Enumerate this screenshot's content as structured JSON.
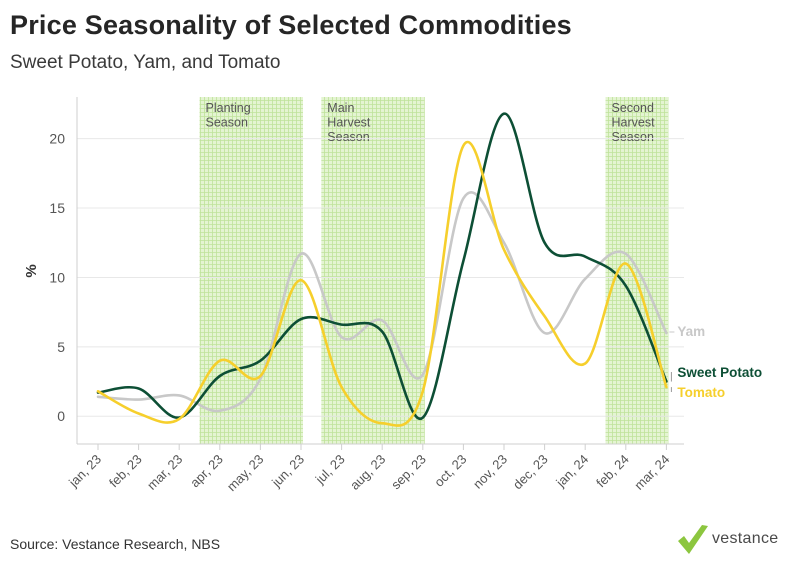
{
  "header": {
    "title": "Price Seasonality of Selected Commodities",
    "subtitle": "Sweet Potato, Yam, and Tomato"
  },
  "footer": {
    "source": "Source: Vestance Research, NBS",
    "brand": "vestance"
  },
  "colors": {
    "sweet_potato": "#0d4f35",
    "yam": "#c8c8c8",
    "tomato": "#f6cf2c",
    "band": "#ccebb0",
    "grid": "#e8e8e8",
    "axis": "#cfcfcf",
    "logo_check": "#8cc63f"
  },
  "chart_data": {
    "type": "line",
    "title": "Price Seasonality of Selected Commodities",
    "subtitle": "Sweet Potato, Yam, and Tomato",
    "xlabel": "",
    "ylabel": "%",
    "categories": [
      "jan, 23",
      "feb, 23",
      "mar, 23",
      "apr, 23",
      "may, 23",
      "jun, 23",
      "jul, 23",
      "aug, 23",
      "sep, 23",
      "oct, 23",
      "nov, 23",
      "dec, 23",
      "jan, 24",
      "feb, 24",
      "mar, 24"
    ],
    "ylim": [
      -2,
      23
    ],
    "yticks": [
      0,
      5,
      10,
      15,
      20
    ],
    "grid": true,
    "series": [
      {
        "name": "Yam",
        "color_key": "yam",
        "values": [
          1.4,
          1.2,
          1.5,
          0.4,
          2.7,
          11.7,
          5.7,
          6.9,
          3.0,
          15.7,
          12.5,
          6.0,
          9.9,
          11.7,
          6.0
        ]
      },
      {
        "name": "Sweet Potato",
        "color_key": "sweet_potato",
        "values": [
          1.7,
          2.0,
          -0.1,
          2.9,
          4.0,
          7.0,
          6.6,
          6.1,
          -0.1,
          11.2,
          21.8,
          12.5,
          11.5,
          9.4,
          2.5
        ]
      },
      {
        "name": "Tomato",
        "color_key": "tomato",
        "values": [
          1.8,
          0.2,
          -0.2,
          4.0,
          2.9,
          9.8,
          2.1,
          -0.5,
          1.8,
          19.5,
          12.0,
          7.2,
          3.8,
          11.0,
          2.1
        ]
      }
    ],
    "bands": [
      {
        "label": [
          "Planting",
          "Season"
        ],
        "from": 3,
        "to": 5
      },
      {
        "label": [
          "Main",
          "Harvest",
          "Season"
        ],
        "from": 6,
        "to": 8
      },
      {
        "label": [
          "Second",
          "Harvest",
          "Season"
        ],
        "from": 13,
        "to": 14
      }
    ],
    "legend": "inline-right"
  }
}
